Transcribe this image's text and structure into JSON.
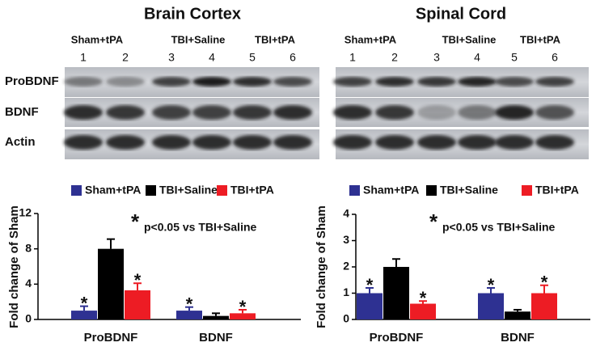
{
  "blots": [
    {
      "title": "Brain Cortex",
      "groups": [
        "Sham+tPA",
        "TBI+Saline",
        "TBI+tPA"
      ],
      "lanes": [
        1,
        2,
        3,
        4,
        5,
        6
      ],
      "rows": [
        "ProBDNF",
        "BDNF",
        "Actin"
      ]
    },
    {
      "title": "Spinal Cord",
      "groups": [
        "Sham+tPA",
        "TBI+Saline",
        "TBI+tPA"
      ],
      "lanes": [
        1,
        2,
        3,
        4,
        5,
        6
      ]
    }
  ],
  "chart_data": [
    {
      "type": "bar",
      "y_label": "Fold change of Sham",
      "categories": [
        "ProBDNF",
        "BDNF"
      ],
      "annotation_marker": "*",
      "annotation": "p<0.05 vs TBI+Saline",
      "ylim": [
        0,
        12
      ],
      "yticks": [
        0,
        4,
        8,
        12
      ],
      "series": [
        {
          "name": "Sham+tPA",
          "color": "#2e3192",
          "values": [
            1,
            1
          ],
          "errors": [
            0.5,
            0.4
          ],
          "markers": [
            "*",
            "*"
          ]
        },
        {
          "name": "TBI+Saline",
          "color": "#000000",
          "values": [
            8,
            0.4
          ],
          "errors": [
            1.1,
            0.3
          ]
        },
        {
          "name": "TBI+tPA",
          "color": "#ed1c24",
          "values": [
            3.3,
            0.7
          ],
          "errors": [
            0.8,
            0.4
          ],
          "markers": [
            "*",
            "*"
          ]
        }
      ]
    },
    {
      "type": "bar",
      "y_label": "Fold change of Sham",
      "categories": [
        "ProBDNF",
        "BDNF"
      ],
      "annotation_marker": "*",
      "annotation": "p<0.05 vs TBI+Saline",
      "ylim": [
        0,
        4
      ],
      "yticks": [
        0,
        1,
        2,
        3,
        4
      ],
      "series": [
        {
          "name": "Sham+tPA",
          "color": "#2e3192",
          "values": [
            1,
            1
          ],
          "errors": [
            0.2,
            0.2
          ],
          "markers": [
            "*",
            "*"
          ]
        },
        {
          "name": "TBI+Saline",
          "color": "#000000",
          "values": [
            2,
            0.3
          ],
          "errors": [
            0.3,
            0.07
          ]
        },
        {
          "name": "TBI+tPA",
          "color": "#ed1c24",
          "values": [
            0.6,
            1
          ],
          "errors": [
            0.1,
            0.3
          ],
          "markers": [
            "*",
            "*"
          ]
        }
      ]
    }
  ]
}
